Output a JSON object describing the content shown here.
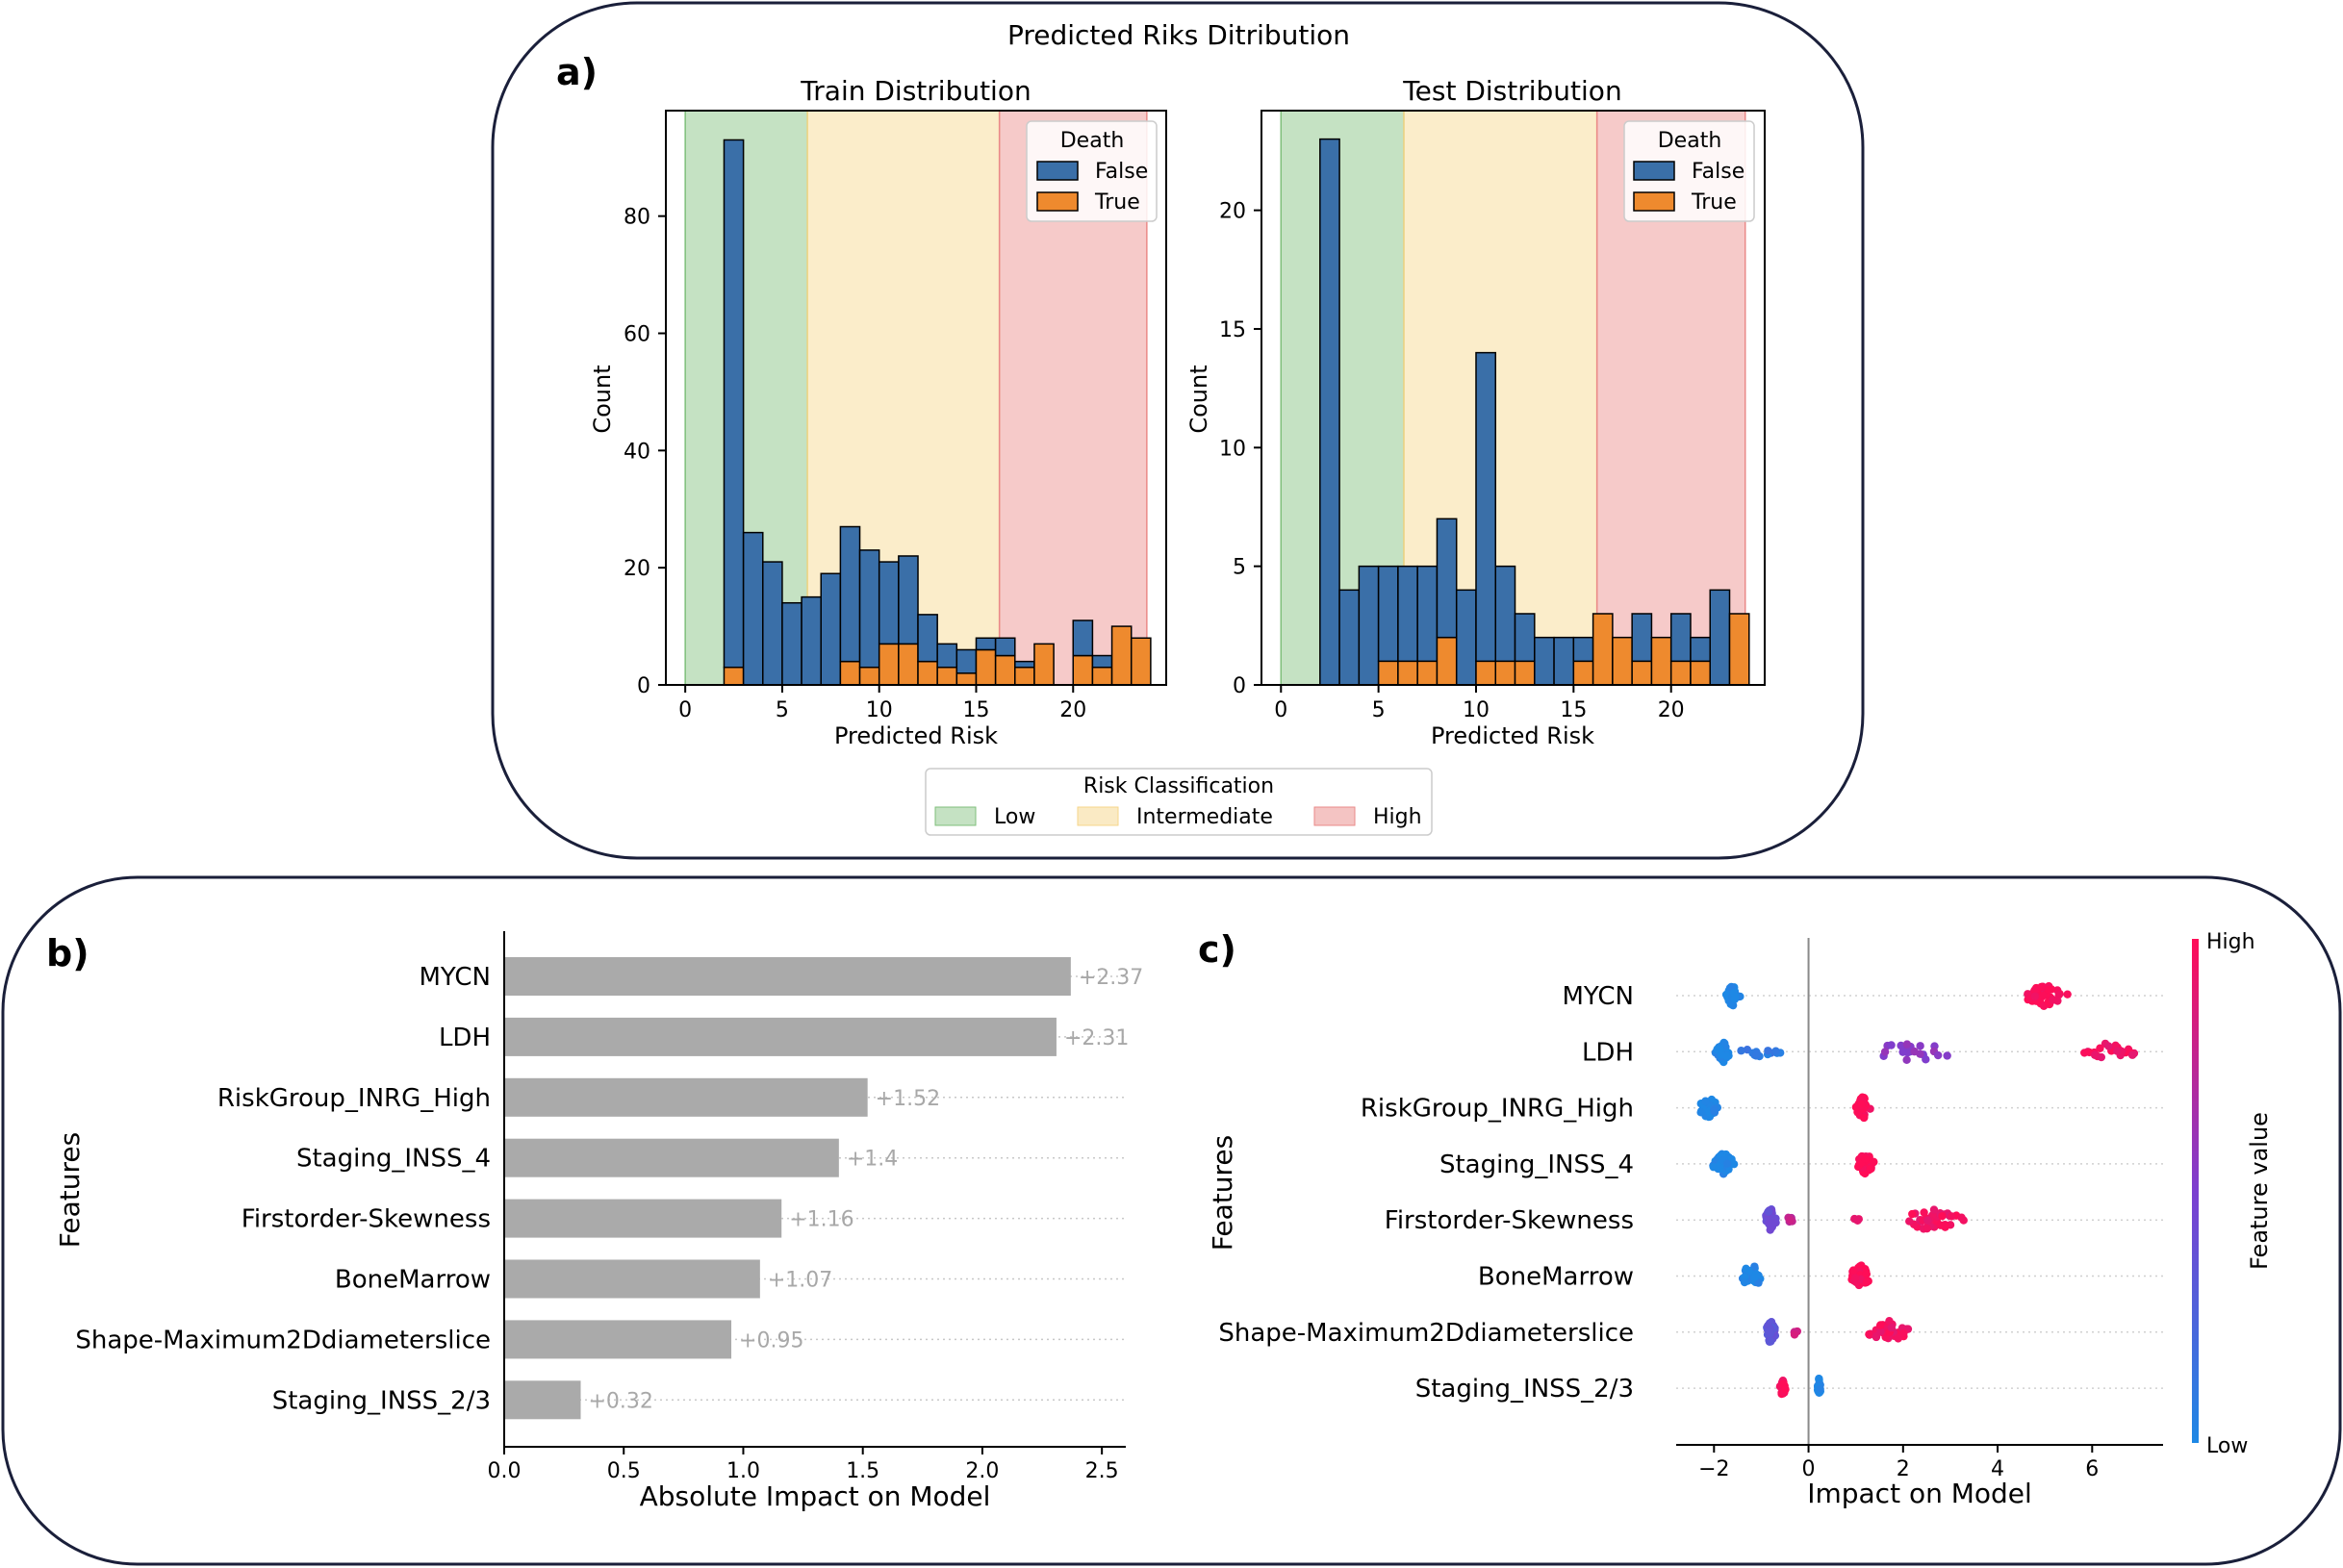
{
  "chart_data": [
    {
      "id": "a",
      "panel_label": "a)",
      "suptitle": "Predicted Riks Ditribution",
      "type": "bar",
      "subplots": [
        {
          "title": "Train Distribution",
          "xlabel": "Predicted Risk",
          "ylabel": "Count",
          "xlim": [
            -1,
            24.8
          ],
          "ylim": [
            0,
            98
          ],
          "xticks": [
            0,
            5,
            10,
            15,
            20
          ],
          "yticks": [
            0,
            20,
            40,
            60,
            80
          ],
          "bins": [
            2,
            3,
            4,
            5,
            6,
            7,
            8,
            9,
            10,
            11,
            12,
            13,
            14,
            15,
            16,
            17,
            18,
            19,
            20,
            21,
            22,
            23
          ],
          "bin_width": 1.0,
          "series": [
            {
              "name": "False",
              "color": "#3a6fa8",
              "values": [
                90,
                26,
                21,
                14,
                15,
                19,
                23,
                20,
                14,
                15,
                8,
                4,
                4,
                2,
                3,
                1,
                0,
                0,
                6,
                2,
                0,
                0
              ]
            },
            {
              "name": "True",
              "color": "#ee8a2e",
              "values": [
                3,
                0,
                0,
                0,
                0,
                0,
                4,
                3,
                7,
                7,
                4,
                3,
                2,
                6,
                5,
                3,
                7,
                0,
                5,
                3,
                10,
                8
              ]
            }
          ],
          "legend": {
            "title": "Death",
            "entries": [
              "False",
              "True"
            ]
          }
        },
        {
          "title": "Test Distribution",
          "xlabel": "Predicted Risk",
          "ylabel": "Count",
          "xlim": [
            -1,
            24.8
          ],
          "ylim": [
            0,
            24.2
          ],
          "xticks": [
            0,
            5,
            10,
            15,
            20
          ],
          "yticks": [
            0,
            5,
            10,
            15,
            20
          ],
          "bins": [
            2,
            3,
            4,
            5,
            6,
            7,
            8,
            9,
            10,
            11,
            12,
            13,
            14,
            15,
            16,
            17,
            18,
            19,
            20,
            21,
            22,
            23
          ],
          "bin_width": 1.0,
          "series": [
            {
              "name": "False",
              "color": "#3a6fa8",
              "values": [
                23,
                4,
                5,
                4,
                4,
                4,
                5,
                4,
                13,
                4,
                2,
                2,
                2,
                1,
                0,
                0,
                2,
                0,
                2,
                1,
                4,
                0
              ]
            },
            {
              "name": "True",
              "color": "#ee8a2e",
              "values": [
                0,
                0,
                0,
                1,
                1,
                1,
                2,
                0,
                1,
                1,
                1,
                0,
                0,
                1,
                3,
                2,
                1,
                2,
                1,
                1,
                0,
                3
              ]
            }
          ],
          "legend": {
            "title": "Death",
            "entries": [
              "False",
              "True"
            ]
          }
        }
      ],
      "risk_regions": [
        {
          "name": "Low",
          "from": 0,
          "to": 6.3,
          "color": "#7fbf7b"
        },
        {
          "name": "Intermediate",
          "from": 6.3,
          "to": 16.2,
          "color": "#f6d68a"
        },
        {
          "name": "High",
          "from": 16.2,
          "to": 23.8,
          "color": "#ea8a88"
        }
      ],
      "region_legend_title": "Risk Classification"
    },
    {
      "id": "b",
      "panel_label": "b)",
      "type": "bar",
      "orientation": "horizontal",
      "xlabel": "Absolute Impact on Model",
      "ylabel": "Features",
      "xlim": [
        0,
        2.6
      ],
      "xticks": [
        0.0,
        0.5,
        1.0,
        1.5,
        2.0,
        2.5
      ],
      "xtick_labels": [
        "0.0",
        "0.5",
        "1.0",
        "1.5",
        "2.0",
        "2.5"
      ],
      "categories": [
        "MYCN",
        "LDH",
        "RiskGroup_INRG_High",
        "Staging_INSS_4",
        "Firstorder-Skewness",
        "BoneMarrow",
        "Shape-Maximum2Ddiameterslice",
        "Staging_INSS_2/3"
      ],
      "values": [
        2.37,
        2.31,
        1.52,
        1.4,
        1.16,
        1.07,
        0.95,
        0.32
      ],
      "value_labels": [
        "+2.37",
        "+2.31",
        "+1.52",
        "+1.4",
        "+1.16",
        "+1.07",
        "+0.95",
        "+0.32"
      ],
      "bar_color": "#aaaaaa"
    },
    {
      "id": "c",
      "panel_label": "c)",
      "type": "scatter",
      "xlabel": "Impact on Model",
      "ylabel": "Features",
      "xlim": [
        -2.8,
        7.5
      ],
      "xticks": [
        -2,
        0,
        2,
        4,
        6
      ],
      "xtick_labels": [
        "−2",
        "0",
        "2",
        "4",
        "6"
      ],
      "categories": [
        "MYCN",
        "LDH",
        "RiskGroup_INRG_High",
        "Staging_INSS_4",
        "Firstorder-Skewness",
        "BoneMarrow",
        "Shape-Maximum2Ddiameterslice",
        "Staging_INSS_2/3"
      ],
      "series": [
        {
          "feature": "MYCN",
          "clusters": [
            {
              "center": -1.6,
              "spread": 0.18,
              "n": 40,
              "value": 0.0
            },
            {
              "center": 5.0,
              "spread": 0.6,
              "n": 45,
              "value": 1.0
            }
          ]
        },
        {
          "feature": "LDH",
          "clusters": [
            {
              "center": -1.8,
              "spread": 0.2,
              "n": 40,
              "value": 0.0
            },
            {
              "center": -1.0,
              "spread": 0.7,
              "n": 14,
              "value": 0.1
            },
            {
              "center": 2.2,
              "spread": 1.4,
              "n": 22,
              "value": 0.55
            },
            {
              "center": 6.4,
              "spread": 0.7,
              "n": 22,
              "value": 0.95
            }
          ]
        },
        {
          "feature": "RiskGroup_INRG_High",
          "clusters": [
            {
              "center": -2.1,
              "spread": 0.3,
              "n": 34,
              "value": 0.0
            },
            {
              "center": 1.15,
              "spread": 0.2,
              "n": 40,
              "value": 1.0
            }
          ]
        },
        {
          "feature": "Staging_INSS_4",
          "clusters": [
            {
              "center": -1.8,
              "spread": 0.3,
              "n": 40,
              "value": 0.0
            },
            {
              "center": 1.2,
              "spread": 0.25,
              "n": 34,
              "value": 1.0
            }
          ]
        },
        {
          "feature": "Firstorder-Skewness",
          "clusters": [
            {
              "center": -0.8,
              "spread": 0.18,
              "n": 32,
              "value": 0.4
            },
            {
              "center": -0.4,
              "spread": 0.1,
              "n": 8,
              "value": 0.75
            },
            {
              "center": 2.6,
              "spread": 0.9,
              "n": 38,
              "value": 0.95
            },
            {
              "center": 1.0,
              "spread": 0.15,
              "n": 4,
              "value": 0.9
            }
          ]
        },
        {
          "feature": "BoneMarrow",
          "clusters": [
            {
              "center": -1.2,
              "spread": 0.4,
              "n": 24,
              "value": 0.0
            },
            {
              "center": 1.1,
              "spread": 0.3,
              "n": 40,
              "value": 1.0
            }
          ]
        },
        {
          "feature": "Shape-Maximum2Ddiameterslice",
          "clusters": [
            {
              "center": -0.8,
              "spread": 0.15,
              "n": 36,
              "value": 0.35
            },
            {
              "center": -0.3,
              "spread": 0.15,
              "n": 6,
              "value": 0.8
            },
            {
              "center": 1.7,
              "spread": 0.6,
              "n": 40,
              "value": 0.95
            }
          ]
        },
        {
          "feature": "Staging_INSS_2/3",
          "clusters": [
            {
              "center": -0.55,
              "spread": 0.08,
              "n": 20,
              "value": 1.0
            },
            {
              "center": 0.22,
              "spread": 0.05,
              "n": 22,
              "value": 0.0
            }
          ]
        }
      ],
      "colorbar": {
        "label": "Feature value",
        "high": "High",
        "low": "Low",
        "low_color": "#1e88e5",
        "high_color": "#ff0d57"
      }
    }
  ]
}
